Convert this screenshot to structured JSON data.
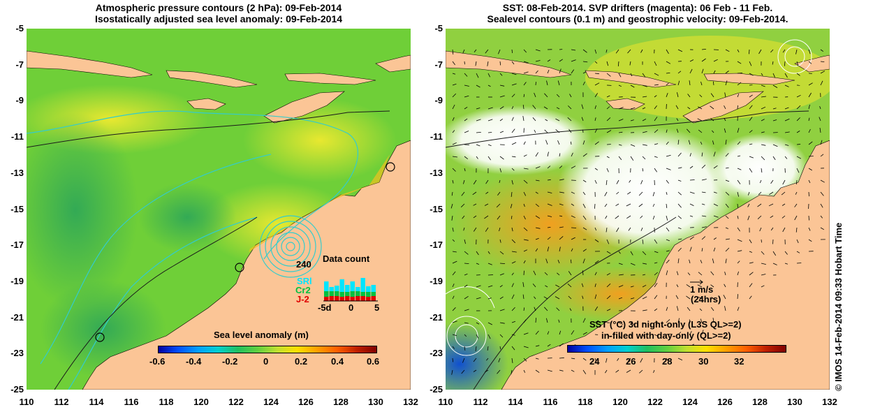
{
  "left_panel": {
    "title_line1": "Atmospheric pressure contours (2 hPa): 09-Feb-2014",
    "title_line2": "Isostatically adjusted sea level anomaly: 09-Feb-2014",
    "y_ticks": [
      "-5",
      "-7",
      "-9",
      "-11",
      "-13",
      "-15",
      "-17",
      "-19",
      "-21",
      "-23",
      "-25"
    ],
    "x_ticks": [
      "110",
      "112",
      "114",
      "116",
      "118",
      "120",
      "122",
      "124",
      "126",
      "128",
      "130",
      "132"
    ],
    "colorbar": {
      "title": "Sea level anomaly (m)",
      "ticks": [
        "-0.6",
        "-0.4",
        "-0.2",
        "0",
        "0.2",
        "0.4",
        "0.6"
      ]
    },
    "inset": {
      "title": "Data count",
      "max_label": "240",
      "series": [
        {
          "name": "SRl",
          "color": "#00e5ff"
        },
        {
          "name": "Cr2",
          "color": "#00c040"
        },
        {
          "name": "J-2",
          "color": "#e00000"
        }
      ],
      "x_ticks": [
        "-5d",
        "0",
        "5"
      ]
    }
  },
  "right_panel": {
    "title_line1": "SST: 08-Feb-2014. SVP drifters (magenta): 06 Feb - 11 Feb.",
    "title_line2": "Sealevel contours (0.1 m) and geostrophic velocity: 09-Feb-2014.",
    "y_ticks": [
      "-5",
      "-7",
      "-9",
      "-11",
      "-13",
      "-15",
      "-17",
      "-19",
      "-21",
      "-23",
      "-25"
    ],
    "x_ticks": [
      "110",
      "112",
      "114",
      "116",
      "118",
      "120",
      "122",
      "124",
      "126",
      "128",
      "130",
      "132"
    ],
    "velocity_scale_label": "1 m/s",
    "velocity_scale_note": "(24hrs)",
    "colorbar": {
      "title_line1": "SST (°C)  3d night-only (L3S QL>=2)",
      "title_line2": "in-filled with day-only (QL>=2)",
      "ticks": [
        "24",
        "26",
        "28",
        "30",
        "32"
      ]
    }
  },
  "credit": "© IMOS 14-Feb-2014 09:33 Hobart Time",
  "colors": {
    "land": "#fbc596",
    "ocean_green": "#66cc33",
    "ocean_yellow": "#e8e830",
    "contour_cyan": "#33cccc",
    "no_data": "#ffffff"
  }
}
